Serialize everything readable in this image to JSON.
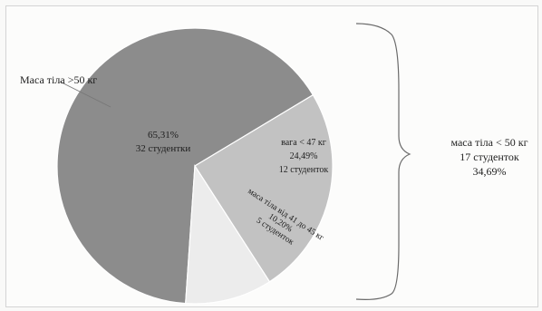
{
  "chart_data": {
    "type": "pie",
    "slices": [
      {
        "label": "Маса тіла >50 кг",
        "percent_label": "65,31%",
        "count_label": "32 студентки",
        "value": 65.31,
        "count": 32,
        "color": "#8c8c8c"
      },
      {
        "label": "вага < 47 кг",
        "percent_label": "24,49%",
        "count_label": "12 студенток",
        "value": 24.49,
        "count": 12,
        "color": "#c2c2c2"
      },
      {
        "label": "маса тіла від 41 до 45 кг",
        "percent_label": "10,20%",
        "count_label": "5 студенток",
        "value": 10.2,
        "count": 5,
        "color": "#ececec"
      }
    ],
    "group_annotation": {
      "line1": "маса тіла < 50 кг",
      "line2": "17 студенток",
      "line3": "34,69%"
    },
    "callout_label": "Маса тіла >50 кг"
  }
}
